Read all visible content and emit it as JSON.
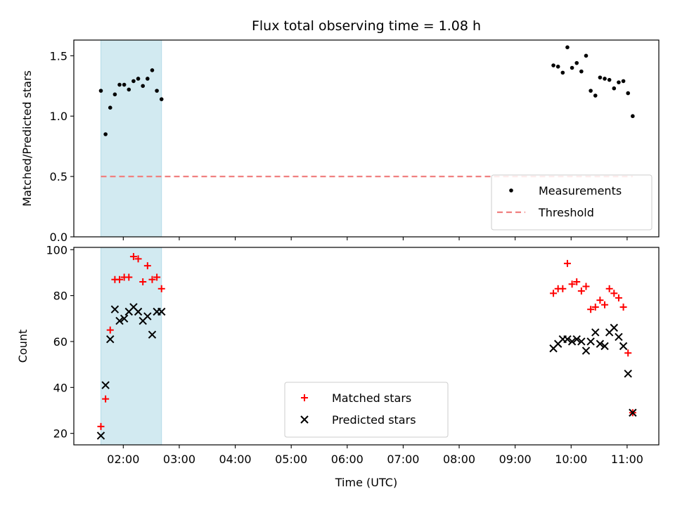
{
  "title": "Flux total observing time = 1.08 h",
  "chart_data": [
    {
      "type": "scatter",
      "ylabel": "Matched/Predicted stars",
      "xlim": [
        "01:07",
        "11:34"
      ],
      "ylim": [
        0,
        1.63
      ],
      "yticks": [
        "0.0",
        "0.5",
        "1.0",
        "1.5"
      ],
      "highlight_span": [
        "01:36",
        "02:41"
      ],
      "highlight_color": "#add8e6",
      "legend_position": "lower right",
      "series": [
        {
          "name": "Measurements",
          "marker": "dot",
          "color": "#000000",
          "x": [
            "01:36",
            "01:41",
            "01:46",
            "01:51",
            "01:56",
            "02:01",
            "02:06",
            "02:11",
            "02:16",
            "02:21",
            "02:26",
            "02:31",
            "02:36",
            "02:41",
            "09:41",
            "09:46",
            "09:51",
            "09:56",
            "10:01",
            "10:06",
            "10:11",
            "10:16",
            "10:21",
            "10:26",
            "10:31",
            "10:36",
            "10:41",
            "10:46",
            "10:51",
            "10:56",
            "11:01",
            "11:06"
          ],
          "y": [
            1.21,
            0.85,
            1.07,
            1.18,
            1.26,
            1.26,
            1.22,
            1.29,
            1.31,
            1.25,
            1.31,
            1.38,
            1.21,
            1.14,
            1.42,
            1.41,
            1.36,
            1.57,
            1.4,
            1.44,
            1.37,
            1.5,
            1.21,
            1.17,
            1.32,
            1.31,
            1.3,
            1.23,
            1.28,
            1.29,
            1.19,
            1.0
          ]
        },
        {
          "name": "Threshold",
          "style": "dashed-line",
          "color": "#f08080",
          "x": [
            "01:36",
            "11:06"
          ],
          "y": [
            0.5,
            0.5
          ]
        }
      ]
    },
    {
      "type": "scatter",
      "xlabel": "Time (UTC)",
      "ylabel": "Count",
      "xlim": [
        "01:07",
        "11:34"
      ],
      "ylim": [
        15,
        101
      ],
      "yticks": [
        "20",
        "40",
        "60",
        "80",
        "100"
      ],
      "xticks": [
        "02:00",
        "03:00",
        "04:00",
        "05:00",
        "06:00",
        "07:00",
        "08:00",
        "09:00",
        "10:00",
        "11:00"
      ],
      "highlight_span": [
        "01:36",
        "02:41"
      ],
      "highlight_color": "#add8e6",
      "legend_position": "lower center",
      "series": [
        {
          "name": "Matched stars",
          "marker": "plus",
          "color": "#ff0000",
          "x": [
            "01:36",
            "01:41",
            "01:46",
            "01:51",
            "01:56",
            "02:01",
            "02:06",
            "02:11",
            "02:16",
            "02:21",
            "02:26",
            "02:31",
            "02:36",
            "02:41",
            "09:41",
            "09:46",
            "09:51",
            "09:56",
            "10:01",
            "10:06",
            "10:11",
            "10:16",
            "10:21",
            "10:26",
            "10:31",
            "10:36",
            "10:41",
            "10:46",
            "10:51",
            "10:56",
            "11:01",
            "11:06"
          ],
          "y": [
            23,
            35,
            65,
            87,
            87,
            88,
            88,
            97,
            96,
            86,
            93,
            87,
            88,
            83,
            81,
            83,
            83,
            94,
            85,
            86,
            82,
            84,
            74,
            75,
            78,
            76,
            83,
            81,
            79,
            75,
            55,
            29
          ]
        },
        {
          "name": "Predicted stars",
          "marker": "x",
          "color": "#000000",
          "x": [
            "01:36",
            "01:41",
            "01:46",
            "01:51",
            "01:56",
            "02:01",
            "02:06",
            "02:11",
            "02:16",
            "02:21",
            "02:26",
            "02:31",
            "02:36",
            "02:41",
            "09:41",
            "09:46",
            "09:51",
            "09:56",
            "10:01",
            "10:06",
            "10:11",
            "10:16",
            "10:21",
            "10:26",
            "10:31",
            "10:36",
            "10:41",
            "10:46",
            "10:51",
            "10:56",
            "11:01",
            "11:06"
          ],
          "y": [
            19,
            41,
            61,
            74,
            69,
            70,
            73,
            75,
            73,
            69,
            71,
            63,
            73,
            73,
            57,
            59,
            61,
            61,
            60,
            61,
            60,
            56,
            60,
            64,
            59,
            58,
            64,
            66,
            62,
            58,
            46,
            29
          ]
        }
      ]
    }
  ]
}
